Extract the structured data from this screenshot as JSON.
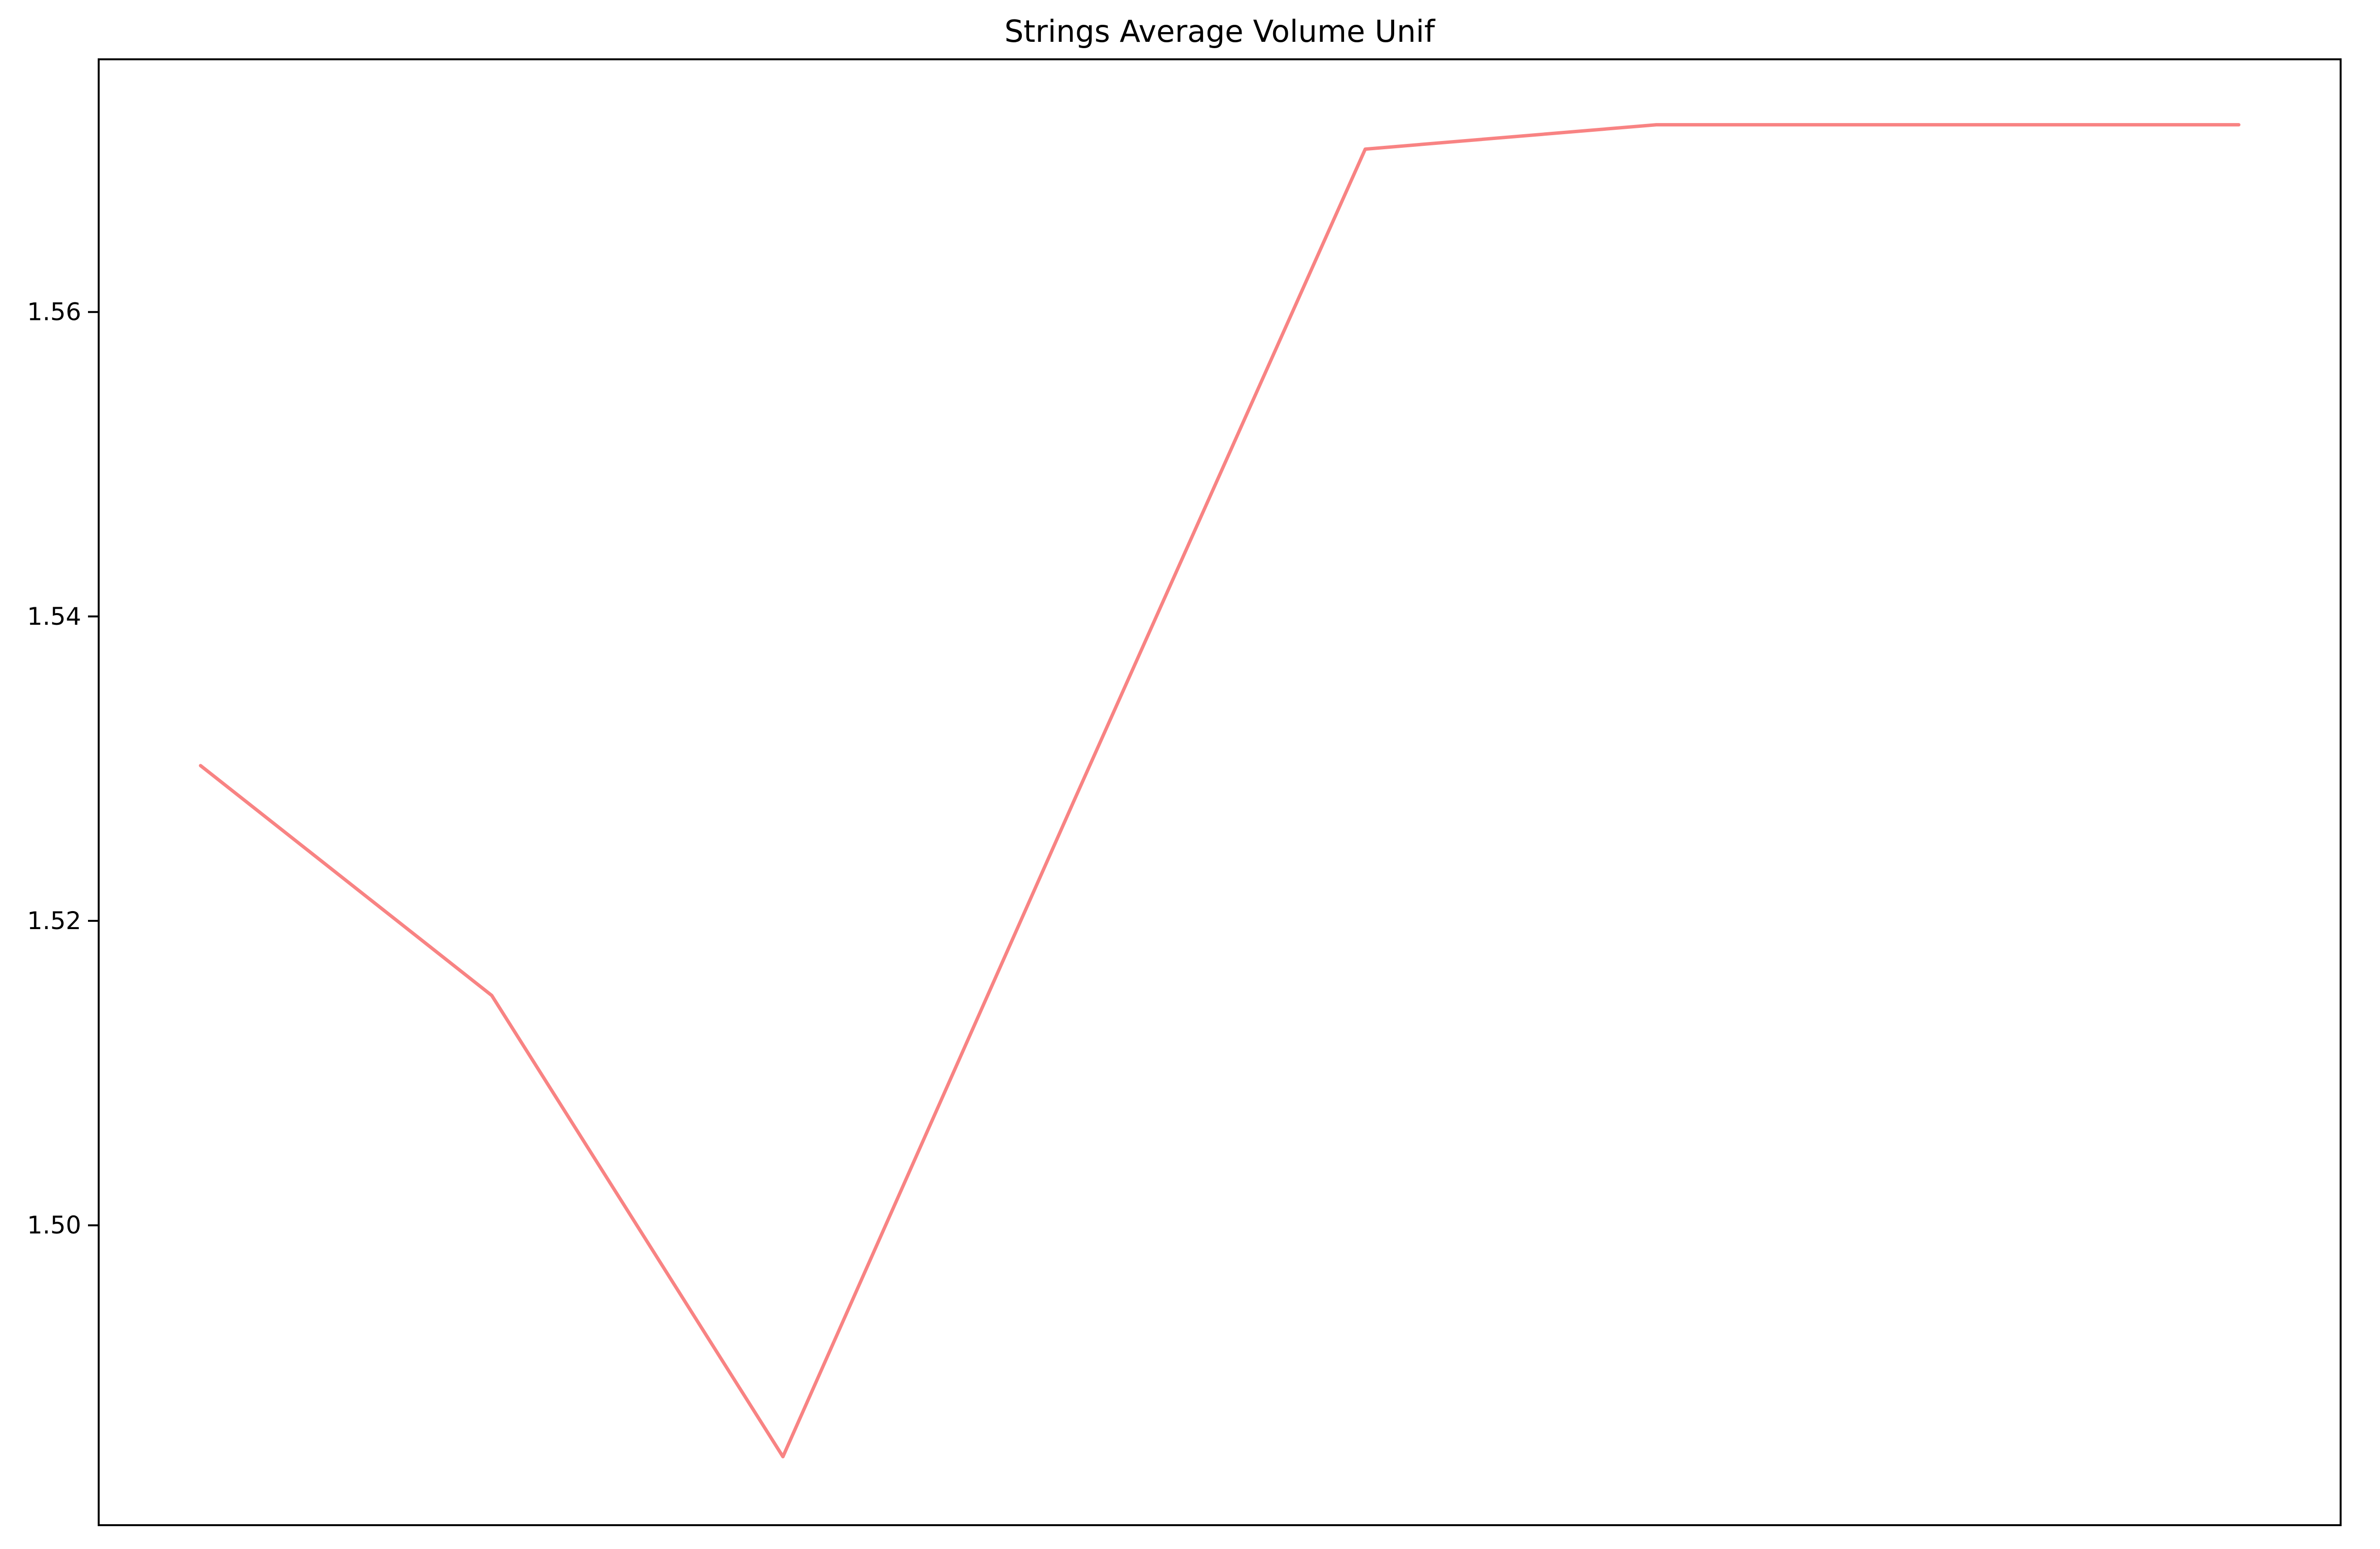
{
  "chart_data": {
    "type": "line",
    "title": "Strings Average Volume Unif",
    "xlabel": "",
    "ylabel": "",
    "x": [
      0,
      1,
      2,
      3,
      4,
      5,
      6,
      7
    ],
    "series": [
      {
        "values": [
          1.5302,
          1.5151,
          1.4848,
          1.5279,
          1.5707,
          1.5723,
          1.5723,
          1.5723
        ],
        "color": "#f55a5a"
      }
    ],
    "xlim": [
      -0.35,
      7.35
    ],
    "ylim": [
      1.4803,
      1.5766
    ],
    "yticks": [
      1.5,
      1.52,
      1.54,
      1.56
    ],
    "ytick_labels": [
      "1.50",
      "1.52",
      "1.54",
      "1.56"
    ],
    "xticks": [],
    "grid": false,
    "legend": "none"
  }
}
